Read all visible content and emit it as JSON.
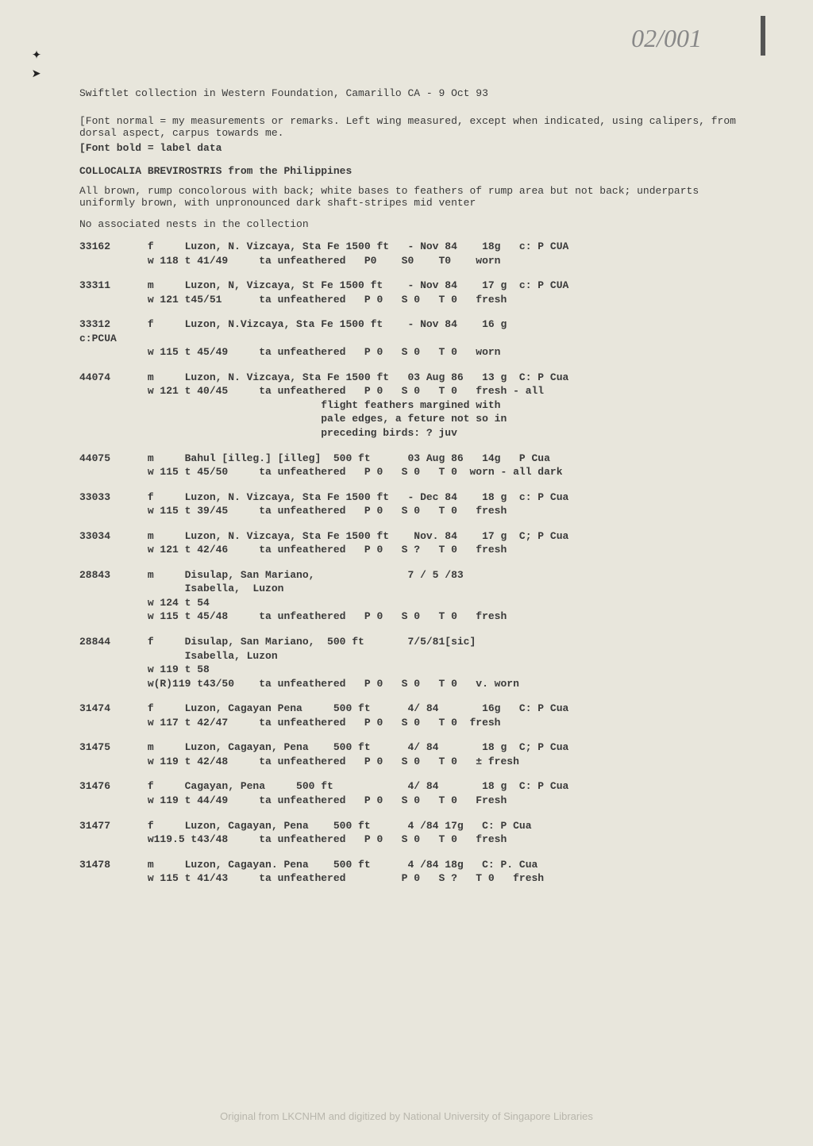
{
  "handwritten": "02/001",
  "title": "Swiftlet collection in Western Foundation, Camarillo CA  - 9 Oct 93",
  "note1": "[Font normal = my measurements or remarks. Left wing measured, except when indicated, using calipers, from dorsal aspect, carpus towards me.",
  "note2": "[Font bold = label data",
  "heading": "COLLOCALIA BREVIROSTRIS from the Philippines",
  "desc1": "All brown, rump concolorous with back; white bases to feathers of rump area but not back; underparts uniformly brown, with unpronounced dark shaft-stripes mid venter",
  "desc2": "No associated nests in the collection",
  "records": [
    {
      "id": "33162",
      "l1": "33162      f     Luzon, N. Vizcaya, Sta Fe 1500 ft   - Nov 84    18g   c: P CUA",
      "l2": "           w 118 t 41/49     ta unfeathered   P0    S0    T0    worn"
    },
    {
      "id": "33311",
      "l1": "33311      m     Luzon, N, Vizcaya, St Fe 1500 ft    - Nov 84    17 g  c: P CUA",
      "l2": "           w 121 t45/51      ta unfeathered   P 0   S 0   T 0   fresh"
    },
    {
      "id": "33312",
      "l1": "33312      f     Luzon, N.Vizcaya, Sta Fe 1500 ft    - Nov 84    16 g",
      "l2": "c:PCUA",
      "l3": "           w 115 t 45/49     ta unfeathered   P 0   S 0   T 0   worn"
    },
    {
      "id": "44074",
      "l1": "44074      m     Luzon, N. Vizcaya, Sta Fe 1500 ft   03 Aug 86   13 g  C: P Cua",
      "l2": "           w 121 t 40/45     ta unfeathered   P 0   S 0   T 0   fresh - all",
      "l3": "                                       flight feathers margined with",
      "l4": "                                       pale edges, a feture not so in",
      "l5": "                                       preceding birds: ? juv"
    },
    {
      "id": "44075",
      "l1": "44075      m     Bahul [illeg.] [illeg]  500 ft      03 Aug 86   14g   P Cua",
      "l2": "           w 115 t 45/50     ta unfeathered   P 0   S 0   T 0  worn - all dark"
    },
    {
      "id": "33033",
      "l1": "33033      f     Luzon, N. Vizcaya, Sta Fe 1500 ft   - Dec 84    18 g  c: P Cua",
      "l2": "           w 115 t 39/45     ta unfeathered   P 0   S 0   T 0   fresh"
    },
    {
      "id": "33034",
      "l1": "33034      m     Luzon, N. Vizcaya, Sta Fe 1500 ft    Nov. 84    17 g  C; P Cua",
      "l2": "           w 121 t 42/46     ta unfeathered   P 0   S ?   T 0   fresh"
    },
    {
      "id": "28843",
      "l1": "28843      m     Disulap, San Mariano,               7 / 5 /83",
      "l2": "                 Isabella,  Luzon",
      "l3": "           w 124 t 54",
      "l4": "           w 115 t 45/48     ta unfeathered   P 0   S 0   T 0   fresh"
    },
    {
      "id": "28844",
      "l1": "28844      f     Disulap, San Mariano,  500 ft       7/5/81[sic]",
      "l2": "                 Isabella, Luzon",
      "l3": "           w 119 t 58",
      "l4": "           w(R)119 t43/50    ta unfeathered   P 0   S 0   T 0   v. worn"
    },
    {
      "id": "31474",
      "l1": "31474      f     Luzon, Cagayan Pena     500 ft      4/ 84       16g   C: P Cua",
      "l2": "           w 117 t 42/47     ta unfeathered   P 0   S 0   T 0  fresh"
    },
    {
      "id": "31475",
      "l1": "31475      m     Luzon, Cagayan, Pena    500 ft      4/ 84       18 g  C; P Cua",
      "l2": "           w 119 t 42/48     ta unfeathered   P 0   S 0   T 0   ± fresh"
    },
    {
      "id": "31476",
      "l1": "31476      f     Cagayan, Pena     500 ft            4/ 84       18 g  C: P Cua",
      "l2": "           w 119 t 44/49     ta unfeathered   P 0   S 0   T 0   Fresh"
    },
    {
      "id": "31477",
      "l1": "31477      f     Luzon, Cagayan, Pena    500 ft      4 /84 17g   C: P Cua",
      "l2": "           w119.5 t43/48     ta unfeathered   P 0   S 0   T 0   fresh"
    },
    {
      "id": "31478",
      "l1": "31478      m     Luzon, Cagayan. Pena    500 ft      4 /84 18g   C: P. Cua",
      "l2": "           w 115 t 41/43     ta unfeathered         P 0   S ?   T 0   fresh"
    }
  ],
  "footer": "Original from LKCNHM and digitized by National University of Singapore Libraries"
}
